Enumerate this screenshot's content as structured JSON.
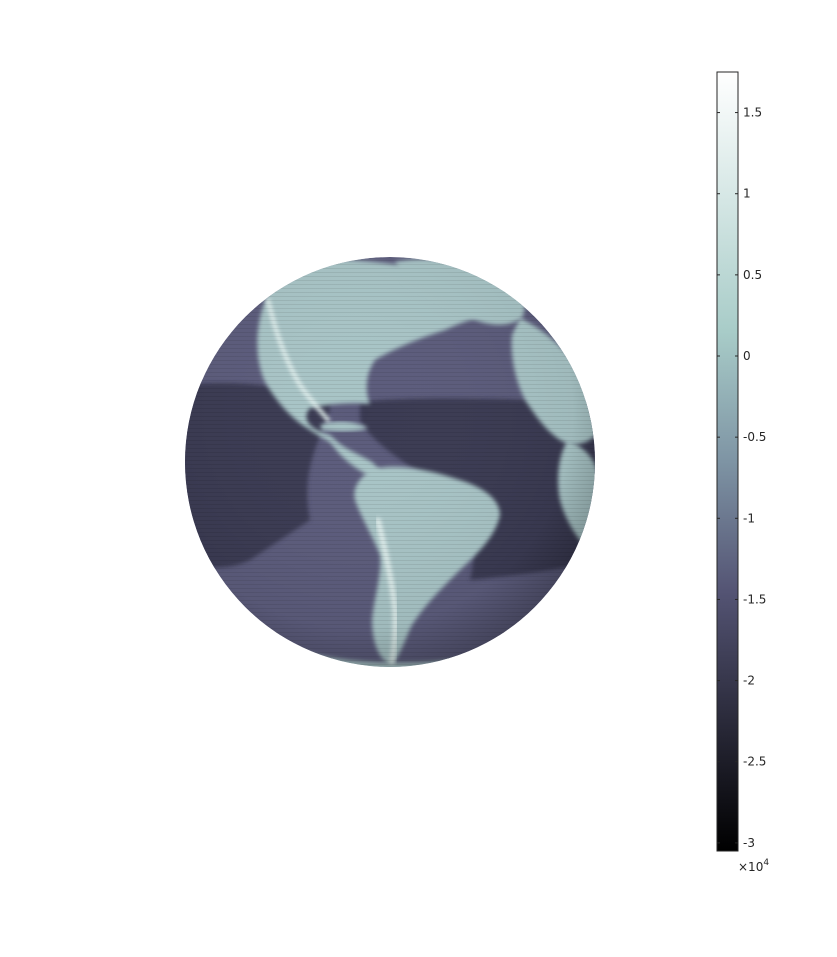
{
  "chart_data": {
    "type": "surface",
    "title": "",
    "colormap": "bone",
    "colorbar": {
      "range": [
        -3.05,
        1.75
      ],
      "ticks": [
        1.5,
        1,
        0.5,
        0,
        -0.5,
        -1,
        -1.5,
        -2,
        -2.5,
        -3
      ],
      "tick_labels": [
        "1.5",
        "1",
        "0.5",
        "0",
        "-0.5",
        "-1",
        "-1.5",
        "-2",
        "-2.5",
        "-3"
      ],
      "multiplier_prefix": "×10",
      "multiplier_exponent": "4",
      "placement": "right",
      "colors": [
        "#000000",
        "#2a2a3a",
        "#545474",
        "#7e94a4",
        "#a8ccc8",
        "#d4e6e4",
        "#ffffff"
      ]
    },
    "globe": {
      "projection": "orthographic",
      "center_longitude": -60,
      "center_latitude": 5,
      "land_tone": "#a8c4c6",
      "ocean_tone": "#5c5c7c",
      "deep_ocean_tone": "#3a3a52",
      "shadow_tone": "#2a2a3e",
      "highlight_tone": "#e2f0ee"
    }
  }
}
